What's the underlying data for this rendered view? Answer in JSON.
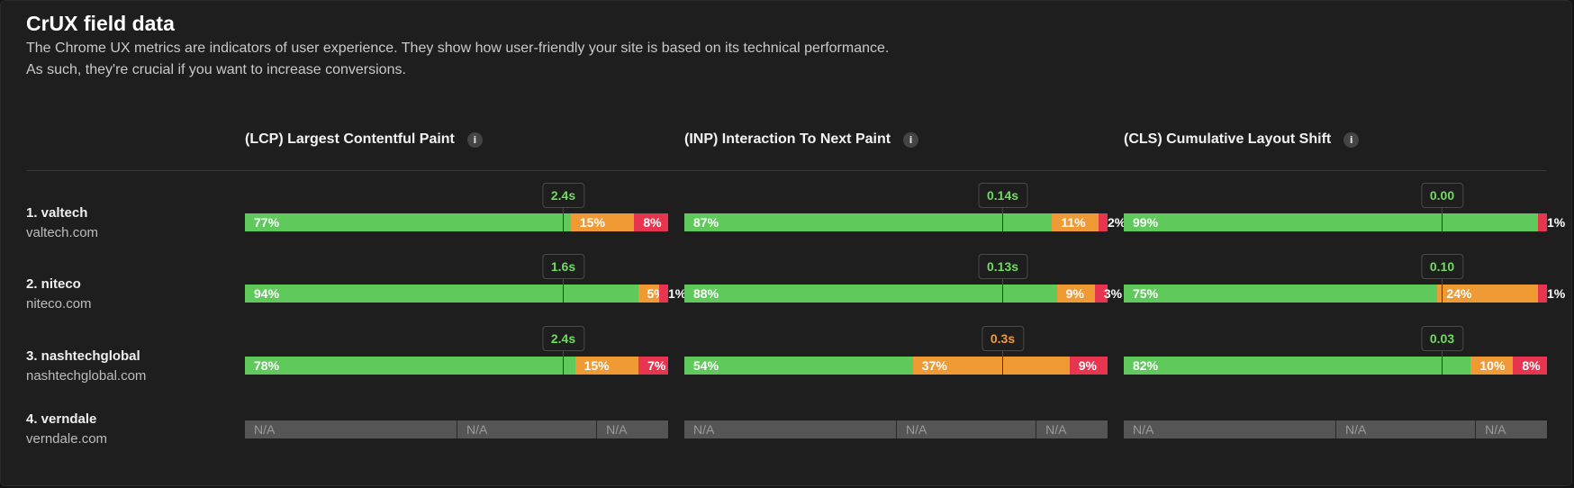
{
  "header": {
    "title": "CrUX field data",
    "description_line1": "The Chrome UX metrics are indicators of user experience. They show how user-friendly your site is based on its technical performance.",
    "description_line2": "As such, they're crucial if you want to increase conversions."
  },
  "metrics": [
    {
      "label": "(LCP) Largest Contentful Paint",
      "info_icon": "info-icon"
    },
    {
      "label": "(INP) Interaction To Next Paint",
      "info_icon": "info-icon"
    },
    {
      "label": "(CLS) Cumulative Layout Shift",
      "info_icon": "info-icon"
    }
  ],
  "colors": {
    "good": "#5fc95b",
    "needs_improvement": "#f09a35",
    "poor": "#e8354f",
    "na": "#555555",
    "tip_good": "#6fdc5f",
    "tip_warn": "#f39a35"
  },
  "sites": [
    {
      "name": "1. valtech",
      "url": "valtech.com",
      "metrics": [
        {
          "tooltip": "2.4s",
          "tooltip_status": "good",
          "segments": [
            {
              "label": "77%",
              "value": 77,
              "status": "good"
            },
            {
              "label": "15%",
              "value": 15,
              "status": "needs_improvement"
            },
            {
              "label": "8%",
              "value": 8,
              "status": "poor"
            }
          ]
        },
        {
          "tooltip": "0.14s",
          "tooltip_status": "good",
          "segments": [
            {
              "label": "87%",
              "value": 87,
              "status": "good"
            },
            {
              "label": "11%",
              "value": 11,
              "status": "needs_improvement"
            },
            {
              "label": "2%",
              "value": 2,
              "status": "poor"
            }
          ]
        },
        {
          "tooltip": "0.00",
          "tooltip_status": "good",
          "segments": [
            {
              "label": "99%",
              "value": 99,
              "status": "good"
            },
            {
              "label": "",
              "value": 0,
              "status": "needs_improvement"
            },
            {
              "label": "1%",
              "value": 1,
              "status": "poor"
            }
          ]
        }
      ]
    },
    {
      "name": "2. niteco",
      "url": "niteco.com",
      "metrics": [
        {
          "tooltip": "1.6s",
          "tooltip_status": "good",
          "segments": [
            {
              "label": "94%",
              "value": 94,
              "status": "good"
            },
            {
              "label": "5%",
              "value": 5,
              "status": "needs_improvement"
            },
            {
              "label": "1%",
              "value": 1,
              "status": "poor"
            }
          ]
        },
        {
          "tooltip": "0.13s",
          "tooltip_status": "good",
          "segments": [
            {
              "label": "88%",
              "value": 88,
              "status": "good"
            },
            {
              "label": "9%",
              "value": 9,
              "status": "needs_improvement"
            },
            {
              "label": "3%",
              "value": 3,
              "status": "poor"
            }
          ]
        },
        {
          "tooltip": "0.10",
          "tooltip_status": "good",
          "segments": [
            {
              "label": "75%",
              "value": 75,
              "status": "good"
            },
            {
              "label": "24%",
              "value": 24,
              "status": "needs_improvement"
            },
            {
              "label": "1%",
              "value": 1,
              "status": "poor"
            }
          ]
        }
      ]
    },
    {
      "name": "3. nashtechglobal",
      "url": "nashtechglobal.com",
      "metrics": [
        {
          "tooltip": "2.4s",
          "tooltip_status": "good",
          "segments": [
            {
              "label": "78%",
              "value": 78,
              "status": "good"
            },
            {
              "label": "15%",
              "value": 15,
              "status": "needs_improvement"
            },
            {
              "label": "7%",
              "value": 7,
              "status": "poor"
            }
          ]
        },
        {
          "tooltip": "0.3s",
          "tooltip_status": "needs_improvement",
          "segments": [
            {
              "label": "54%",
              "value": 54,
              "status": "good"
            },
            {
              "label": "37%",
              "value": 37,
              "status": "needs_improvement"
            },
            {
              "label": "9%",
              "value": 9,
              "status": "poor"
            }
          ]
        },
        {
          "tooltip": "0.03",
          "tooltip_status": "good",
          "segments": [
            {
              "label": "82%",
              "value": 82,
              "status": "good"
            },
            {
              "label": "10%",
              "value": 10,
              "status": "needs_improvement"
            },
            {
              "label": "8%",
              "value": 8,
              "status": "poor"
            }
          ]
        }
      ]
    },
    {
      "name": "4. verndale",
      "url": "verndale.com",
      "metrics": [
        {
          "tooltip": null,
          "segments": [
            {
              "label": "N/A",
              "value": 50,
              "status": "na"
            },
            {
              "label": "N/A",
              "value": 33,
              "status": "na"
            },
            {
              "label": "N/A",
              "value": 17,
              "status": "na"
            }
          ]
        },
        {
          "tooltip": null,
          "segments": [
            {
              "label": "N/A",
              "value": 50,
              "status": "na"
            },
            {
              "label": "N/A",
              "value": 33,
              "status": "na"
            },
            {
              "label": "N/A",
              "value": 17,
              "status": "na"
            }
          ]
        },
        {
          "tooltip": null,
          "segments": [
            {
              "label": "N/A",
              "value": 50,
              "status": "na"
            },
            {
              "label": "N/A",
              "value": 33,
              "status": "na"
            },
            {
              "label": "N/A",
              "value": 17,
              "status": "na"
            }
          ]
        }
      ]
    }
  ]
}
